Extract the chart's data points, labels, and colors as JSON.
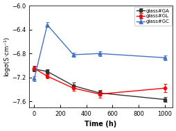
{
  "time": [
    0,
    100,
    300,
    500,
    1000
  ],
  "ga_y": [
    -7.06,
    -7.1,
    -7.34,
    -7.46,
    -7.57
  ],
  "ga_yerr": [
    0.04,
    0.03,
    0.05,
    0.05,
    0.04
  ],
  "gl_y": [
    -7.05,
    -7.18,
    -7.38,
    -7.48,
    -7.38
  ],
  "gl_yerr": [
    0.04,
    0.04,
    0.04,
    0.06,
    0.07
  ],
  "gc_y": [
    -7.22,
    -6.32,
    -6.82,
    -6.8,
    -6.87
  ],
  "gc_yerr": [
    0.04,
    0.04,
    0.04,
    0.04,
    0.04
  ],
  "ga_color": "#333333",
  "gl_color": "#ff0000",
  "gc_color": "#4472c4",
  "xlabel": "Time (h)",
  "ylabel": "logσ(S·cm⁻¹)",
  "ylim": [
    -7.7,
    -6.0
  ],
  "xlim": [
    -40,
    1060
  ],
  "yticks": [
    -7.6,
    -7.2,
    -6.8,
    -6.4,
    -6.0
  ],
  "xticks": [
    0,
    200,
    400,
    600,
    800,
    1000
  ],
  "legend_labels": [
    "glass#GA",
    "glass#GL",
    "glass#GC"
  ],
  "background_color": "#ffffff"
}
